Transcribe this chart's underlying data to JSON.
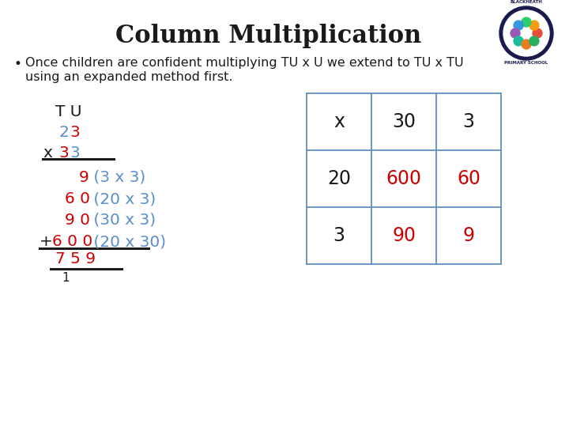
{
  "title": "Column Multiplication",
  "bullet_line1": "Once children are confident multiplying TU x U we extend to TU x TU",
  "bullet_line2": "using an expanded method first.",
  "bg_color": "#ffffff",
  "black": "#1a1a1a",
  "red": "#cc0000",
  "blue": "#5b8ecb",
  "grid_line_color": "#6090c0",
  "title_fs": 22,
  "body_fs": 11.5,
  "calc_fs": 14.5,
  "grid_fs": 17,
  "grid": {
    "headers": [
      "x",
      "30",
      "3"
    ],
    "row1_label": "20",
    "row1_vals": [
      "600",
      "60"
    ],
    "row2_label": "3",
    "row2_vals": [
      "90",
      "9"
    ]
  }
}
